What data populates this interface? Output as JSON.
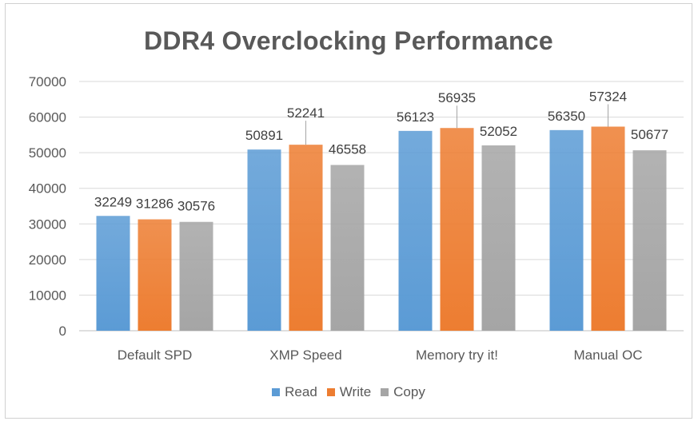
{
  "chart_data": {
    "type": "bar",
    "title": "DDR4 Overclocking Performance",
    "xlabel": "",
    "ylabel": "",
    "ylim": [
      0,
      70000
    ],
    "yticks": [
      0,
      10000,
      20000,
      30000,
      40000,
      50000,
      60000,
      70000
    ],
    "grid": true,
    "legend_position": "bottom",
    "categories": [
      "Default SPD",
      "XMP Speed",
      "Memory try it!",
      "Manual OC"
    ],
    "series": [
      {
        "name": "Read",
        "color": "#5b9bd5",
        "values": [
          32249,
          50891,
          56123,
          56350
        ]
      },
      {
        "name": "Write",
        "color": "#ed7d31",
        "values": [
          31286,
          52241,
          56935,
          57324
        ]
      },
      {
        "name": "Copy",
        "color": "#a5a5a5",
        "values": [
          30576,
          46558,
          52052,
          50677
        ]
      }
    ]
  }
}
